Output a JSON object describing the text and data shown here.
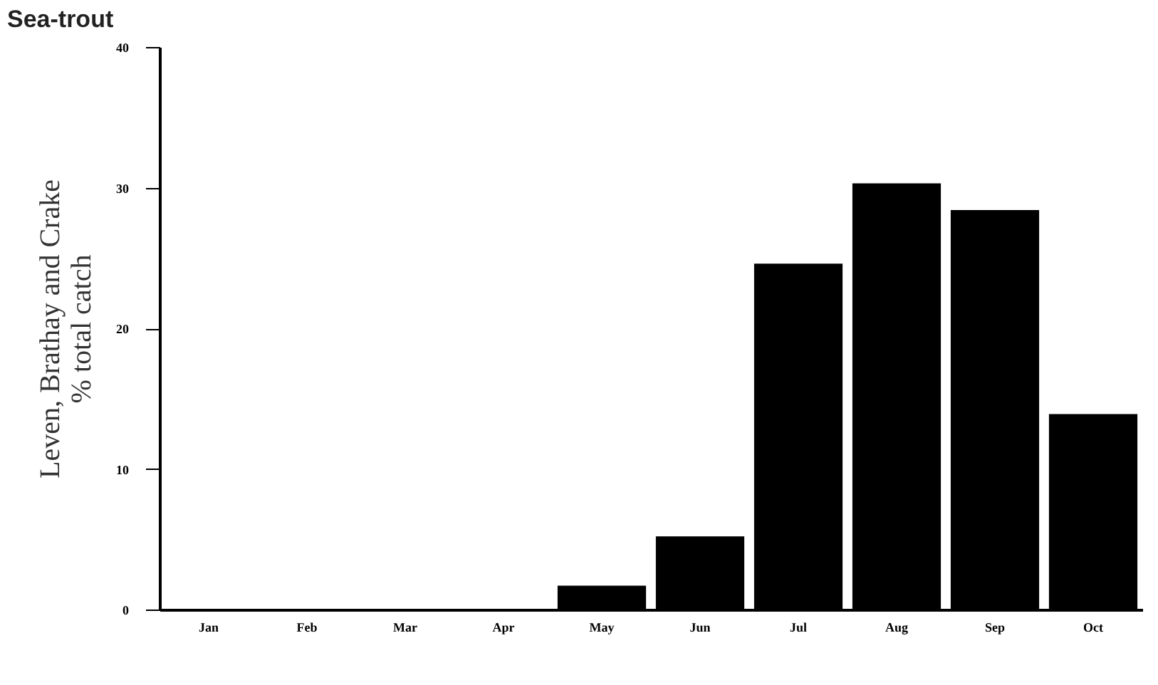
{
  "chart_data": {
    "type": "bar",
    "title": "Sea-trout",
    "ylabel": "Leven, Brathay and Crake\n% total catch",
    "categories": [
      "Jan",
      "Feb",
      "Mar",
      "Apr",
      "May",
      "Jun",
      "Jul",
      "Aug",
      "Sep",
      "Oct"
    ],
    "values": [
      0,
      0,
      0,
      0,
      1.7,
      5.2,
      24.6,
      30.3,
      28.4,
      13.9
    ],
    "color": "#000000",
    "ylim": [
      0,
      40
    ],
    "yticks": [
      0,
      10,
      20,
      30,
      40
    ],
    "grid": false
  }
}
